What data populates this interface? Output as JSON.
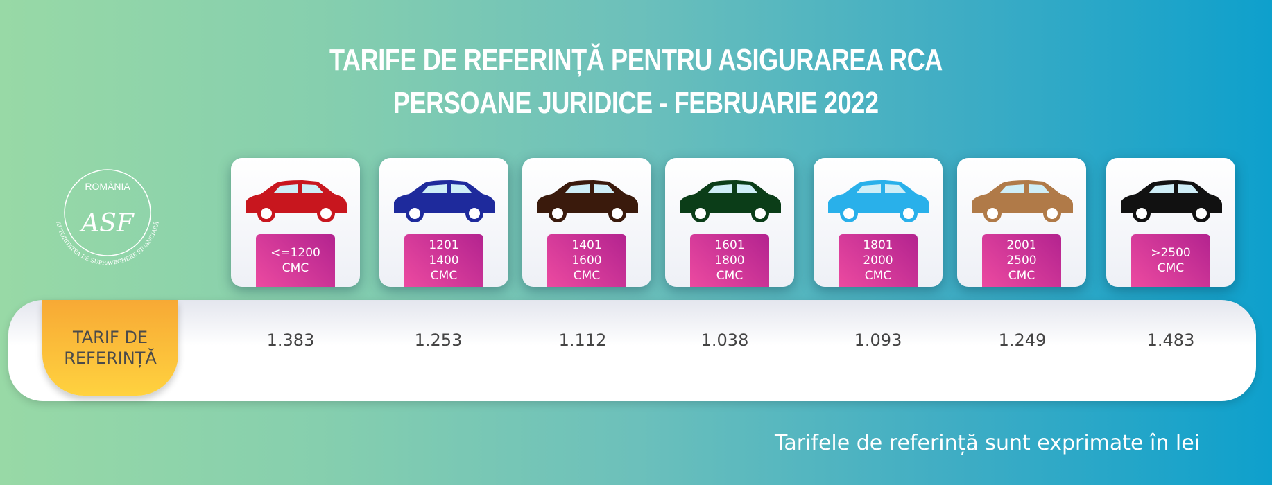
{
  "title": {
    "line1": "TARIFE DE REFERINȚĂ PENTRU ASIGURAREA RCA",
    "line2": "PERSOANE JURIDICE - FEBRUARIE 2022"
  },
  "logo": {
    "country": "ROMÂNIA",
    "name": "AUTORITATEA DE SUPRAVEGHERE FINANCIARĂ",
    "monogram": "ASF"
  },
  "categories": [
    {
      "l1": "<=1200",
      "l2": "CMC",
      "l3": "",
      "color": "#c8161e",
      "value": "1.383"
    },
    {
      "l1": "1201",
      "l2": "1400",
      "l3": "CMC",
      "color": "#1e2a9c",
      "value": "1.253"
    },
    {
      "l1": "1401",
      "l2": "1600",
      "l3": "CMC",
      "color": "#3a1a0c",
      "value": "1.112"
    },
    {
      "l1": "1601",
      "l2": "1800",
      "l3": "CMC",
      "color": "#0b3d18",
      "value": "1.038"
    },
    {
      "l1": "1801",
      "l2": "2000",
      "l3": "CMC",
      "color": "#29b0ea",
      "value": "1.093"
    },
    {
      "l1": "2001",
      "l2": "2500",
      "l3": "CMC",
      "color": "#b07a48",
      "value": "1.249"
    },
    {
      "l1": ">2500",
      "l2": "CMC",
      "l3": "",
      "color": "#111111",
      "value": "1.483"
    }
  ],
  "row_label": {
    "l1": "TARIF DE",
    "l2": "REFERINȚĂ"
  },
  "footer": "Tarifele de referință sunt exprimate în lei"
}
